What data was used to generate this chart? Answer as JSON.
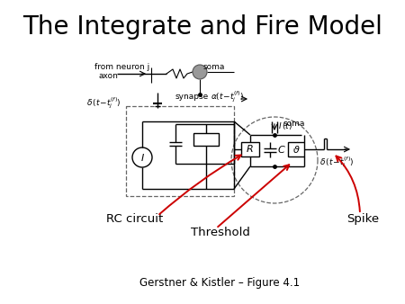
{
  "title": "The Integrate and Fire Model",
  "title_fontsize": 20,
  "bg_color": "#ffffff",
  "label_rc": "RC circuit",
  "label_threshold": "Threshold",
  "label_spike": "Spike",
  "label_fontsize": 9.5,
  "arrow_color": "#cc0000",
  "subtitle": "Gerstner & Kistler – Figure 4.1",
  "subtitle_fontsize": 8.5
}
